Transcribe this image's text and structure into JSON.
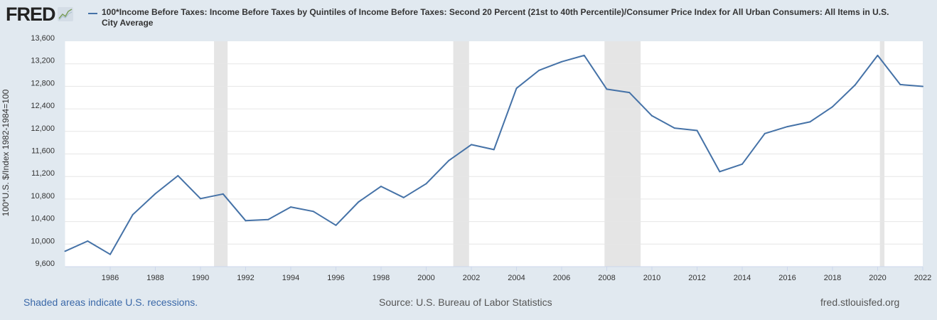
{
  "logo": {
    "text": "FRED",
    "icon": "line-chart-icon"
  },
  "colors": {
    "background": "#e1e9f0",
    "line": "#4572a7",
    "recession": "#e5e5e5",
    "grid": "#e6e6e6"
  },
  "footer": {
    "recession_note": "Shaded areas indicate U.S. recessions.",
    "source": "Source: U.S. Bureau of Labor Statistics",
    "site": "fred.stlouisfed.org"
  },
  "chart_data": {
    "type": "line",
    "title": "",
    "xlabel": "",
    "ylabel": "100*U.S. $/Index 1982-1984=100",
    "xlim": [
      1984,
      2022
    ],
    "ylim": [
      9600,
      13600
    ],
    "grid": true,
    "legend_position": "top",
    "x_ticks": [
      "1986",
      "1988",
      "1990",
      "1992",
      "1994",
      "1996",
      "1998",
      "2000",
      "2002",
      "2004",
      "2006",
      "2008",
      "2010",
      "2012",
      "2014",
      "2016",
      "2018",
      "2020",
      "2022"
    ],
    "y_ticks": [
      "9,600",
      "10,000",
      "10,400",
      "10,800",
      "11,200",
      "11,600",
      "12,000",
      "12,400",
      "12,800",
      "13,200",
      "13,600"
    ],
    "recessions": [
      [
        1990.6,
        1991.2
      ],
      [
        2001.2,
        2001.9
      ],
      [
        2007.9,
        2009.5
      ],
      [
        2020.1,
        2020.3
      ]
    ],
    "x": [
      1984,
      1985,
      1986,
      1987,
      1988,
      1989,
      1990,
      1991,
      1992,
      1993,
      1994,
      1995,
      1996,
      1997,
      1998,
      1999,
      2000,
      2001,
      2002,
      2003,
      2004,
      2005,
      2006,
      2007,
      2008,
      2009,
      2010,
      2011,
      2012,
      2013,
      2014,
      2015,
      2016,
      2017,
      2018,
      2019,
      2020,
      2021,
      2022
    ],
    "series": [
      {
        "name": "100*Income Before Taxes: Income Before Taxes by Quintiles of Income Before Taxes: Second 20 Percent (21st to 40th Percentile)/Consumer Price Index for All Urban Consumers: All Items in U.S. City Average",
        "values": [
          9874,
          10054,
          9818,
          10524,
          10895,
          11214,
          10807,
          10890,
          10416,
          10436,
          10659,
          10580,
          10335,
          10748,
          11025,
          10827,
          11072,
          11483,
          11765,
          11677,
          12765,
          13084,
          13236,
          13349,
          12749,
          12690,
          12277,
          12059,
          12017,
          11286,
          11420,
          11962,
          12084,
          12169,
          12437,
          12824,
          13349,
          12832,
          12799
        ]
      }
    ]
  }
}
